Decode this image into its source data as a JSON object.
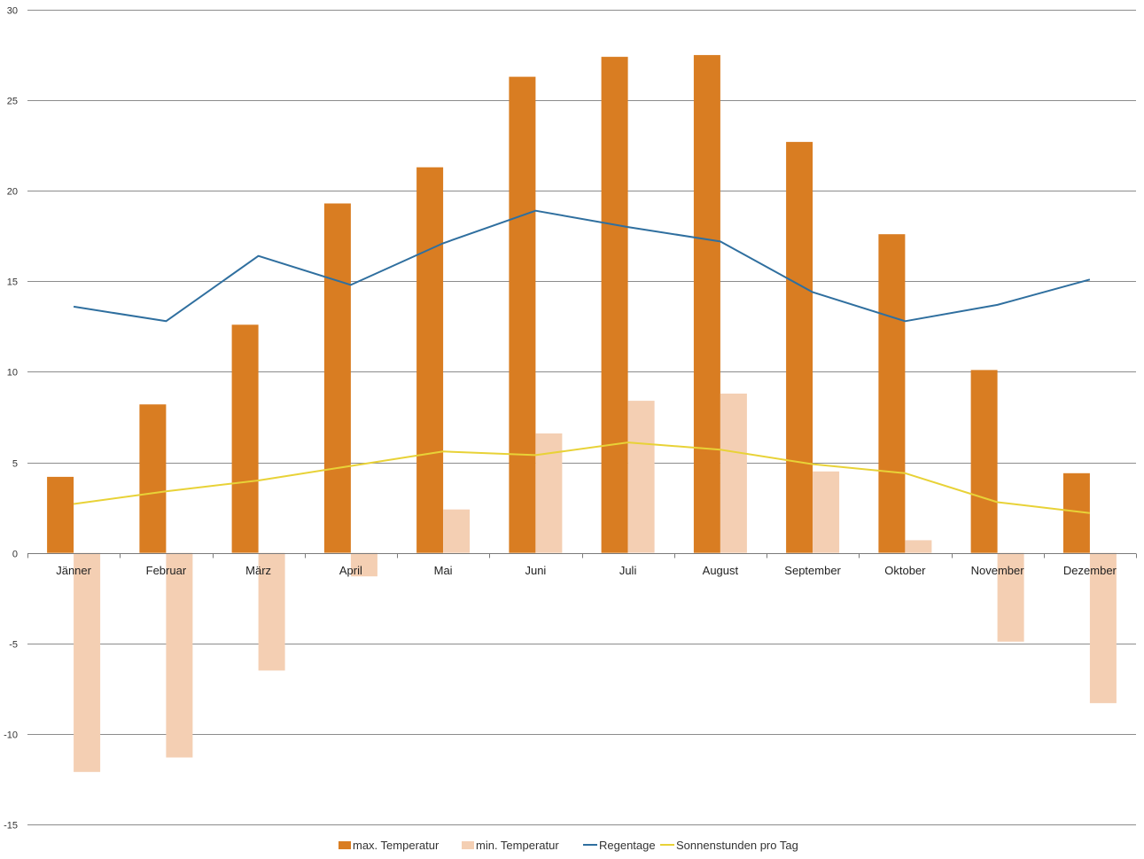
{
  "chart_data": {
    "type": "bar",
    "title": "",
    "xlabel": "",
    "ylabel": "",
    "ylim": [
      -15,
      30
    ],
    "yticks": [
      -15,
      -10,
      -5,
      0,
      5,
      10,
      15,
      20,
      25,
      30
    ],
    "grid": true,
    "legend_position": "bottom",
    "categories": [
      "Jänner",
      "Februar",
      "März",
      "April",
      "Mai",
      "Juni",
      "Juli",
      "August",
      "September",
      "Oktober",
      "November",
      "Dezember"
    ],
    "series": [
      {
        "name": "max. Temperatur",
        "kind": "bar",
        "color": "#d97d22",
        "values": [
          4.2,
          8.2,
          12.6,
          19.3,
          21.3,
          26.3,
          27.4,
          27.5,
          22.7,
          17.6,
          10.1,
          4.4
        ]
      },
      {
        "name": "min. Temperatur",
        "kind": "bar",
        "color": "#f4cfb3",
        "values": [
          -12.1,
          -11.3,
          -6.5,
          -1.3,
          2.4,
          6.6,
          8.4,
          8.8,
          4.5,
          0.7,
          -4.9,
          -8.3
        ]
      },
      {
        "name": "Regentage",
        "kind": "line",
        "color": "#2f6f9f",
        "values": [
          13.6,
          12.8,
          16.4,
          14.8,
          17.1,
          18.9,
          18.0,
          17.2,
          14.4,
          12.8,
          13.7,
          15.1
        ]
      },
      {
        "name": "Sonnenstunden pro Tag",
        "kind": "line",
        "color": "#e8d237",
        "values": [
          2.7,
          3.4,
          4.0,
          4.8,
          5.6,
          5.4,
          6.1,
          5.7,
          4.9,
          4.4,
          2.8,
          2.2
        ]
      }
    ]
  }
}
